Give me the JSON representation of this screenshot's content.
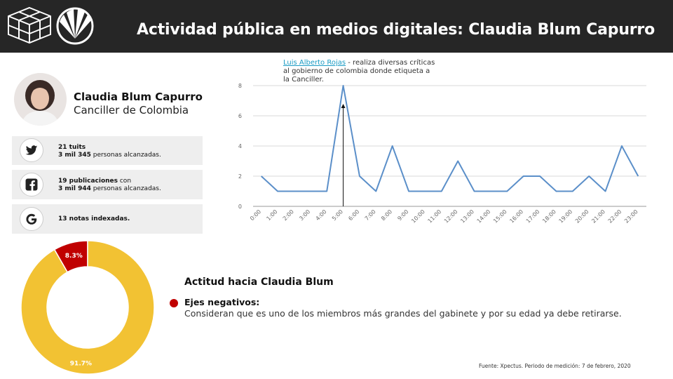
{
  "header": {
    "title": "Actividad pública en medios digitales: Claudia Blum Capurro",
    "background": "#262626"
  },
  "profile": {
    "name": "Claudia Blum Capurro",
    "role": "Canciller de Colombia"
  },
  "stats": [
    {
      "icon": "twitter-icon",
      "line1_bold": "21 tuits",
      "line1_rest": "",
      "line2_bold": "3 mil 345",
      "line2_rest": " personas alcanzadas."
    },
    {
      "icon": "facebook-icon",
      "line1_bold": "19 publicaciones",
      "line1_rest": " con",
      "line2_bold": "3 mil 944",
      "line2_rest": " personas alcanzadas."
    },
    {
      "icon": "google-icon",
      "line1_bold": "13 notas indexadas.",
      "line1_rest": "",
      "line2_bold": "",
      "line2_rest": ""
    }
  ],
  "annotation": {
    "link": "Luis Alberto Rojas",
    "text": " - realiza diversas críticas al gobierno de colombia donde etiqueta a la Canciller."
  },
  "chart_data": [
    {
      "type": "line",
      "categories": [
        "0:00",
        "1:00",
        "2:00",
        "3:00",
        "4:00",
        "5:00",
        "6:00",
        "7:00",
        "8:00",
        "9:00",
        "10:00",
        "11:00",
        "12:00",
        "13:00",
        "14:00",
        "15:00",
        "16:00",
        "17:00",
        "18:00",
        "19:00",
        "20:00",
        "21:00",
        "22:00",
        "23:00"
      ],
      "series": [
        {
          "values": [
            2,
            1,
            1,
            1,
            1,
            8,
            2,
            1,
            4,
            1,
            1,
            1,
            3,
            1,
            1,
            1,
            2,
            2,
            1,
            1,
            2,
            1,
            4,
            2
          ],
          "color": "#5b8fc9"
        }
      ],
      "yticks": [
        0,
        2,
        4,
        6,
        8
      ],
      "ylim": [
        0,
        8
      ],
      "grid": true,
      "annotation_category": "5:00"
    },
    {
      "type": "pie",
      "donut": true,
      "slices": [
        {
          "label": "8.3%",
          "value": 8.3,
          "color": "#c00000"
        },
        {
          "label": "91.7%",
          "value": 91.7,
          "color": "#f2c233"
        }
      ]
    }
  ],
  "attitude": {
    "title": "Actitud hacia Claudia Blum",
    "negative_label": "Ejes negativos:",
    "negative_text": "Consideran que es uno de los miembros más grandes del gabinete y por su edad ya debe retirarse.",
    "negative_color": "#c00000"
  },
  "source": "Fuente: Xpectus. Periodo de medición:  7 de febrero, 2020"
}
